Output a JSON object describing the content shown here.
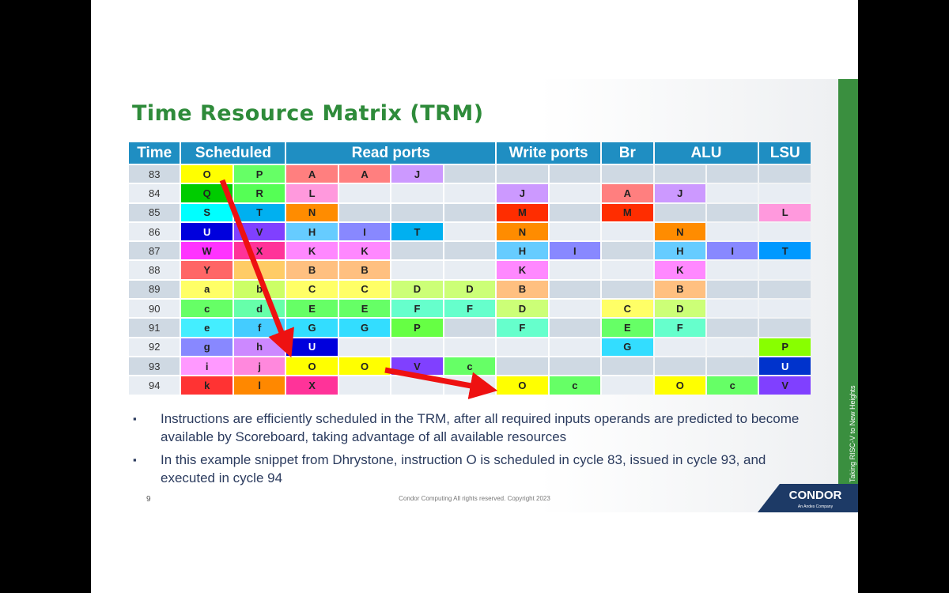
{
  "slide": {
    "title": "Time Resource Matrix (TRM)",
    "table": {
      "headers": [
        "Time",
        "Scheduled",
        "Read ports",
        "Write ports",
        "Br",
        "ALU",
        "LSU"
      ],
      "rows": [
        {
          "time": 83,
          "cells": [
            {
              "text": "O",
              "color": "#ffff00"
            },
            {
              "text": "P",
              "color": "#66ff66"
            },
            {
              "text": "A",
              "color": "#ff7f7f"
            },
            {
              "text": "A",
              "color": "#ff7f7f"
            },
            {
              "text": "J",
              "color": "#cc99ff"
            },
            null,
            null,
            null,
            null,
            null,
            null,
            null
          ]
        },
        {
          "time": 84,
          "cells": [
            {
              "text": "Q",
              "color": "#00cc00"
            },
            {
              "text": "R",
              "color": "#55ff55"
            },
            {
              "text": "L",
              "color": "#ff99dd"
            },
            null,
            null,
            null,
            {
              "text": "J",
              "color": "#cc99ff"
            },
            null,
            {
              "text": "A",
              "color": "#ff7f7f"
            },
            {
              "text": "J",
              "color": "#cc99ff"
            },
            null,
            null
          ]
        },
        {
          "time": 85,
          "cells": [
            {
              "text": "S",
              "color": "#00ffff"
            },
            {
              "text": "T",
              "color": "#00b0f0"
            },
            {
              "text": "N",
              "color": "#ff8c00"
            },
            null,
            null,
            null,
            {
              "text": "M",
              "color": "#ff2d00"
            },
            null,
            {
              "text": "M",
              "color": "#ff2d00"
            },
            null,
            null,
            {
              "text": "L",
              "color": "#ff99dd"
            }
          ]
        },
        {
          "time": 86,
          "cells": [
            {
              "text": "U",
              "color": "#0000dd"
            },
            {
              "text": "V",
              "color": "#8040ff"
            },
            {
              "text": "H",
              "color": "#66ccff"
            },
            {
              "text": "I",
              "color": "#8888ff"
            },
            {
              "text": "T",
              "color": "#00b0f0"
            },
            null,
            {
              "text": "N",
              "color": "#ff8c00"
            },
            null,
            null,
            {
              "text": "N",
              "color": "#ff8c00"
            },
            null,
            null
          ]
        },
        {
          "time": 87,
          "cells": [
            {
              "text": "W",
              "color": "#ff33ff"
            },
            {
              "text": "X",
              "color": "#ff3399"
            },
            {
              "text": "K",
              "color": "#ff88ff"
            },
            {
              "text": "K",
              "color": "#ff88ff"
            },
            null,
            null,
            {
              "text": "H",
              "color": "#66ccff"
            },
            {
              "text": "I",
              "color": "#8888ff"
            },
            null,
            {
              "text": "H",
              "color": "#66ccff"
            },
            {
              "text": "I",
              "color": "#8888ff"
            },
            {
              "text": "T",
              "color": "#0099ff"
            }
          ]
        },
        {
          "time": 88,
          "cells": [
            {
              "text": "Y",
              "color": "#ff6666"
            },
            {
              "color": "#ffcc66"
            },
            {
              "text": "B",
              "color": "#ffc080"
            },
            {
              "text": "B",
              "color": "#ffc080"
            },
            null,
            null,
            {
              "text": "K",
              "color": "#ff88ff"
            },
            null,
            null,
            {
              "text": "K",
              "color": "#ff88ff"
            },
            null,
            null
          ]
        },
        {
          "time": 89,
          "cells": [
            {
              "text": "a",
              "color": "#ffff66"
            },
            {
              "text": "b",
              "color": "#ccff66"
            },
            {
              "text": "C",
              "color": "#ffff66"
            },
            {
              "text": "C",
              "color": "#ffff66"
            },
            {
              "text": "D",
              "color": "#ccff77"
            },
            {
              "text": "D",
              "color": "#ccff77"
            },
            {
              "text": "B",
              "color": "#ffc080"
            },
            null,
            null,
            {
              "text": "B",
              "color": "#ffc080"
            },
            null,
            null
          ]
        },
        {
          "time": 90,
          "cells": [
            {
              "text": "c",
              "color": "#66ff66"
            },
            {
              "text": "d",
              "color": "#66ffaa"
            },
            {
              "text": "E",
              "color": "#66ff66"
            },
            {
              "text": "E",
              "color": "#66ff66"
            },
            {
              "text": "F",
              "color": "#66ffcc"
            },
            {
              "text": "F",
              "color": "#66ffcc"
            },
            {
              "text": "D",
              "color": "#ccff77"
            },
            null,
            {
              "text": "C",
              "color": "#ffff66"
            },
            {
              "text": "D",
              "color": "#ccff77"
            },
            null,
            null
          ]
        },
        {
          "time": 91,
          "cells": [
            {
              "text": "e",
              "color": "#44eeff"
            },
            {
              "text": "f",
              "color": "#44ccff"
            },
            {
              "text": "G",
              "color": "#33ddff"
            },
            {
              "text": "G",
              "color": "#33ddff"
            },
            {
              "text": "P",
              "color": "#66ff44"
            },
            null,
            {
              "text": "F",
              "color": "#66ffcc"
            },
            null,
            {
              "text": "E",
              "color": "#66ff66"
            },
            {
              "text": "F",
              "color": "#66ffcc"
            },
            null,
            null
          ]
        },
        {
          "time": 92,
          "cells": [
            {
              "text": "g",
              "color": "#8888ff"
            },
            {
              "text": "h",
              "color": "#cc88ff"
            },
            {
              "text": "U",
              "color": "#0000dd"
            },
            null,
            null,
            null,
            null,
            null,
            {
              "text": "G",
              "color": "#33ddff"
            },
            null,
            null,
            {
              "text": "P",
              "color": "#88ff00"
            }
          ]
        },
        {
          "time": 93,
          "cells": [
            {
              "text": "i",
              "color": "#ff99ff"
            },
            {
              "text": "j",
              "color": "#ff88dd"
            },
            {
              "text": "O",
              "color": "#ffff00"
            },
            {
              "text": "O",
              "color": "#ffff00"
            },
            {
              "text": "V",
              "color": "#8040ff"
            },
            {
              "text": "c",
              "color": "#66ff66"
            },
            null,
            null,
            null,
            null,
            null,
            {
              "text": "U",
              "color": "#0033cc"
            }
          ]
        },
        {
          "time": 94,
          "cells": [
            {
              "text": "k",
              "color": "#ff3333"
            },
            {
              "text": "l",
              "color": "#ff8800"
            },
            {
              "text": "X",
              "color": "#ff3399"
            },
            null,
            null,
            null,
            {
              "text": "O",
              "color": "#ffff00"
            },
            {
              "text": "c",
              "color": "#66ff66"
            },
            null,
            {
              "text": "O",
              "color": "#ffff00"
            },
            {
              "text": "c",
              "color": "#66ff66"
            },
            {
              "text": "V",
              "color": "#8040ff"
            }
          ]
        }
      ]
    },
    "bullets": [
      "Instructions are efficiently scheduled in the TRM, after all required inputs operands are predicted to become available by Scoreboard, taking advantage of all available resources",
      "In this example snippet from Dhrystone, instruction O is scheduled in cycle 83, issued in cycle 93, and executed in cycle 94"
    ],
    "page_number": 9,
    "footer": "Condor Computing  All rights reserved. Copyright 2023",
    "logo": "CONDOR",
    "logo_sub": "An Andes Company",
    "side_text": "Taking RISC-V to New Heights"
  }
}
